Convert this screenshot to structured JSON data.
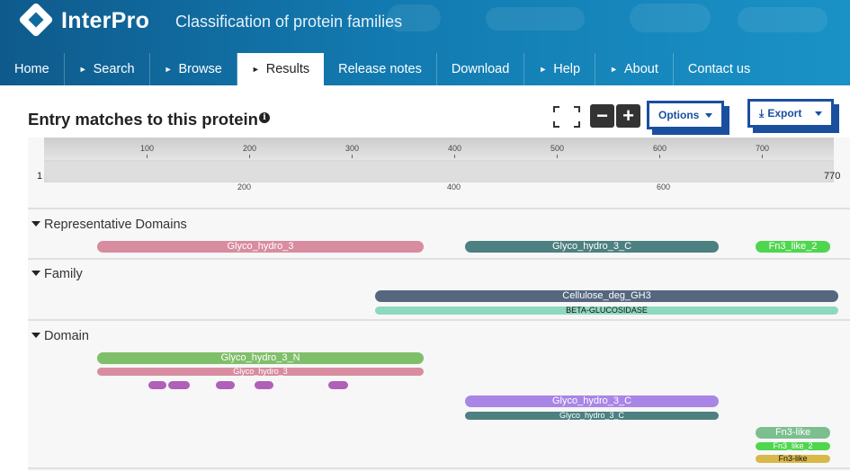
{
  "header": {
    "brand": "InterPro",
    "tagline": "Classification of protein families"
  },
  "nav": {
    "items": [
      {
        "label": "Home",
        "arrow": false
      },
      {
        "label": "Search",
        "arrow": true
      },
      {
        "label": "Browse",
        "arrow": true
      },
      {
        "label": "Results",
        "arrow": true,
        "active": true
      },
      {
        "label": "Release notes",
        "arrow": false
      },
      {
        "label": "Download",
        "arrow": false
      },
      {
        "label": "Help",
        "arrow": true
      },
      {
        "label": "About",
        "arrow": true
      },
      {
        "label": "Contact us",
        "arrow": false
      }
    ]
  },
  "page": {
    "title": "Entry matches to this protein",
    "info_glyph": "i"
  },
  "toolbar": {
    "zoom_out_glyph": "−",
    "zoom_in_glyph": "+",
    "options_label": "Options",
    "export_label": "Export",
    "export_icon": "download-icon",
    "fullscreen_icon": "fullscreen-icon"
  },
  "ruler": {
    "start": "1",
    "end": "770",
    "top_ticks": [
      "100",
      "200",
      "300",
      "400",
      "500",
      "600",
      "700"
    ],
    "bottom_ticks": [
      "200",
      "400",
      "600"
    ]
  },
  "sections": {
    "representative_domains": "Representative Domains",
    "family": "Family",
    "domain": "Domain"
  },
  "tracks": {
    "rep_glyco_hydro_3": "Glyco_hydro_3",
    "rep_glyco_hydro_3_c": "Glyco_hydro_3_C",
    "rep_fn3_like_2": "Fn3_like_2",
    "fam_cellulose": "Cellulose_deg_GH3",
    "fam_beta_gluc": "BETA-GLUCOSIDASE",
    "dom_glyco_hydro_3_n": "Glyco_hydro_3_N",
    "dom_glyco_hydro_3": "Glyco_hydro_3",
    "dom_glyco_hydro_3_c_big": "Glyco_hydro_3_C",
    "dom_glyco_hydro_3_c_small": "Glyco_hydro_3_C",
    "dom_fn3_like": "Fn3-like",
    "dom_fn3_like_2": "Fn3_like_2",
    "dom_fn3_like_yellow": "Fn3-like"
  },
  "colors": {
    "pink": "#d88ca0",
    "teal": "#4d8080",
    "green_bright": "#4fd64f",
    "slate": "#55677f",
    "mint": "#8fd8c0",
    "green": "#7fbf6a",
    "purple": "#b060b8",
    "lavender": "#a985e6",
    "sage": "#7bbf8f",
    "gold": "#d9b84a"
  }
}
